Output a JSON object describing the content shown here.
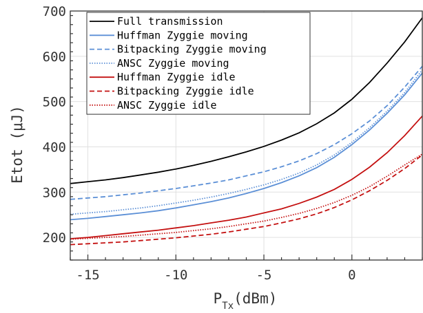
{
  "chart_data": {
    "type": "line",
    "xlabel": {
      "main": "P",
      "sub": "Tx",
      "unit": "(dBm)"
    },
    "ylabel": "Etot (μJ)",
    "xlim": [
      -16,
      4
    ],
    "ylim": [
      150,
      700
    ],
    "xticks": [
      -15,
      -10,
      -5,
      0
    ],
    "yticks": [
      200,
      300,
      400,
      500,
      600,
      700
    ],
    "grid": true,
    "legend_position": "top-left",
    "x": [
      -16,
      -15,
      -14,
      -13,
      -12,
      -11,
      -10,
      -9,
      -8,
      -7,
      -6,
      -5,
      -4,
      -3,
      -2,
      -1,
      0,
      1,
      2,
      3,
      4
    ],
    "series": [
      {
        "name": "Full transmission",
        "color": "#000000",
        "dash": "solid",
        "values": [
          319,
          323,
          327,
          332,
          338,
          344,
          351,
          359,
          368,
          378,
          389,
          401,
          415,
          431,
          451,
          475,
          505,
          542,
          585,
          632,
          685
        ]
      },
      {
        "name": "Huffman Zyggie moving",
        "color": "#5b8fd6",
        "dash": "solid",
        "values": [
          239,
          242,
          246,
          250,
          254,
          259,
          265,
          272,
          279,
          287,
          297,
          308,
          321,
          336,
          354,
          377,
          405,
          437,
          474,
          515,
          563
        ]
      },
      {
        "name": "Bitpacking Zyggie moving",
        "color": "#5b8fd6",
        "dash": "dashed",
        "values": [
          284,
          287,
          290,
          294,
          298,
          303,
          308,
          314,
          320,
          327,
          336,
          345,
          356,
          369,
          385,
          405,
          429,
          457,
          491,
          532,
          578
        ]
      },
      {
        "name": "ANSC Zyggie moving",
        "color": "#5b8fd6",
        "dash": "dotted",
        "values": [
          251,
          254,
          257,
          261,
          265,
          270,
          276,
          282,
          289,
          297,
          306,
          316,
          328,
          342,
          360,
          382,
          410,
          442,
          479,
          520,
          570
        ]
      },
      {
        "name": "Huffman Zyggie idle",
        "color": "#c41010",
        "dash": "solid",
        "values": [
          197,
          200,
          204,
          208,
          212,
          216,
          221,
          226,
          232,
          238,
          245,
          254,
          263,
          275,
          289,
          306,
          328,
          355,
          387,
          425,
          468
        ]
      },
      {
        "name": "Bitpacking Zyggie idle",
        "color": "#c41010",
        "dash": "dashed",
        "values": [
          184,
          186,
          188,
          190,
          193,
          196,
          199,
          203,
          207,
          212,
          218,
          224,
          232,
          241,
          252,
          266,
          283,
          303,
          326,
          352,
          382
        ]
      },
      {
        "name": "ANSC Zyggie idle",
        "color": "#c41010",
        "dash": "dotted",
        "values": [
          196,
          198,
          200,
          202,
          205,
          208,
          211,
          215,
          219,
          224,
          230,
          236,
          244,
          253,
          264,
          277,
          293,
          312,
          335,
          360,
          384
        ]
      }
    ]
  }
}
